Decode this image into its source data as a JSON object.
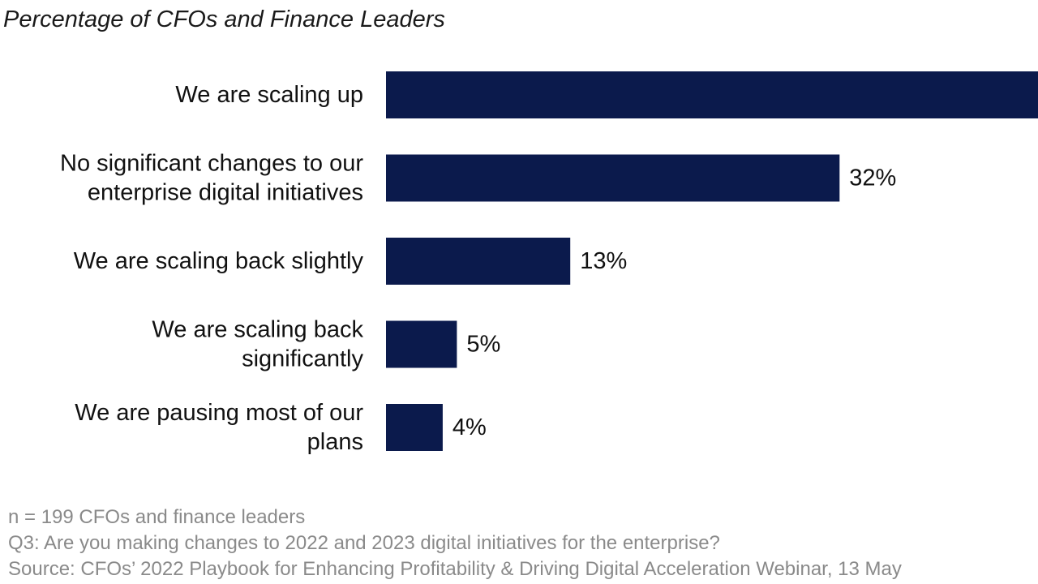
{
  "chart_data": {
    "type": "bar",
    "orientation": "horizontal",
    "subtitle": "Percentage of CFOs and Finance Leaders",
    "categories": [
      [
        "We are scaling up"
      ],
      [
        "No significant changes to our",
        "enterprise digital initiatives"
      ],
      [
        "We are scaling back slightly"
      ],
      [
        "We are scaling back",
        "significantly"
      ],
      [
        "We are pausing most of our",
        "plans"
      ]
    ],
    "values": [
      46,
      32,
      13,
      5,
      4
    ],
    "value_labels": [
      "",
      "32%",
      "13%",
      "5%",
      "4%"
    ],
    "bar_color": "#0b1a4c",
    "xlim": [
      0,
      46
    ],
    "grid": false,
    "legend": "none"
  },
  "footnotes": {
    "sample": "n = 199 CFOs and finance leaders",
    "question": "Q3: Are you making changes to 2022 and 2023 digital initiatives for the enterprise?",
    "source": "Source: CFOs’ 2022 Playbook for Enhancing Profitability & Driving Digital Acceleration Webinar, 13 May"
  }
}
